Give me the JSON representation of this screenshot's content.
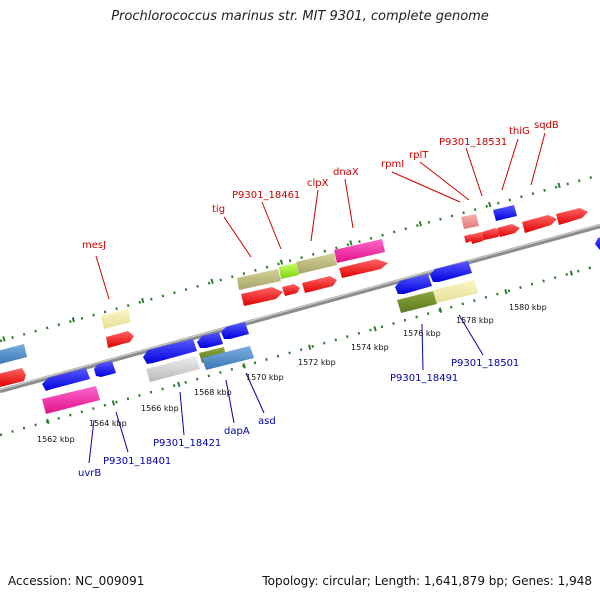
{
  "title": "Prochlorococcus marinus str. MIT 9301, complete genome",
  "footer": {
    "accession": "Accession: NC_009091",
    "stats": "Topology: circular; Length: 1,641,879 bp; Genes: 1,948"
  },
  "colors": {
    "forward_label": "#cc0000",
    "reverse_label": "#0000aa",
    "backbone": "#888888",
    "ticks": "#2e7d2e"
  },
  "kbp_labels": [
    "1562 kbp",
    "1564 kbp",
    "1566 kbp",
    "1568 kbp",
    "1570 kbp",
    "1572 kbp",
    "1574 kbp",
    "1576 kbp",
    "1578 kbp",
    "1580 kbp"
  ],
  "forward_gene_labels": [
    "mesJ",
    "tig",
    "P9301_18461",
    "clpX",
    "dnaX",
    "rpmI",
    "rplT",
    "P9301_18531",
    "thiG",
    "sqdB"
  ],
  "reverse_gene_labels": [
    "uvrB",
    "P9301_18401",
    "P9301_18421",
    "dapA",
    "asd",
    "P9301_18491",
    "P9301_18501"
  ]
}
